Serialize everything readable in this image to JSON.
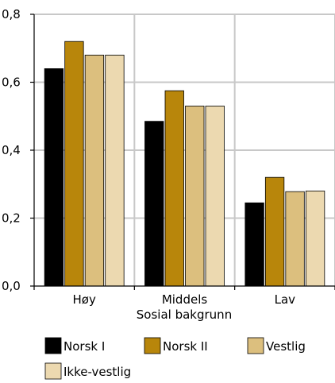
{
  "chart_data": {
    "type": "bar",
    "title": "",
    "xlabel": "Sosial bakgrunn",
    "ylabel": "",
    "ylim": [
      0,
      0.8
    ],
    "yticks": [
      0.0,
      0.2,
      0.4,
      0.6,
      0.8
    ],
    "ytick_labels": [
      "0,0",
      "0,2",
      "0,4",
      "0,6",
      "0,8"
    ],
    "categories": [
      "Høy",
      "Middels",
      "Lav"
    ],
    "series": [
      {
        "name": "Norsk I",
        "color": "#000000",
        "values": [
          0.64,
          0.485,
          0.245
        ]
      },
      {
        "name": "Norsk II",
        "color": "#b8860b",
        "values": [
          0.72,
          0.575,
          0.32
        ]
      },
      {
        "name": "Vestlig",
        "color": "#dcbf7e",
        "values": [
          0.68,
          0.53,
          0.278
        ]
      },
      {
        "name": "Ikke-vestlig",
        "color": "#ecd9b0",
        "values": [
          0.68,
          0.53,
          0.28
        ]
      }
    ],
    "grid": true,
    "legend_position": "bottom"
  }
}
